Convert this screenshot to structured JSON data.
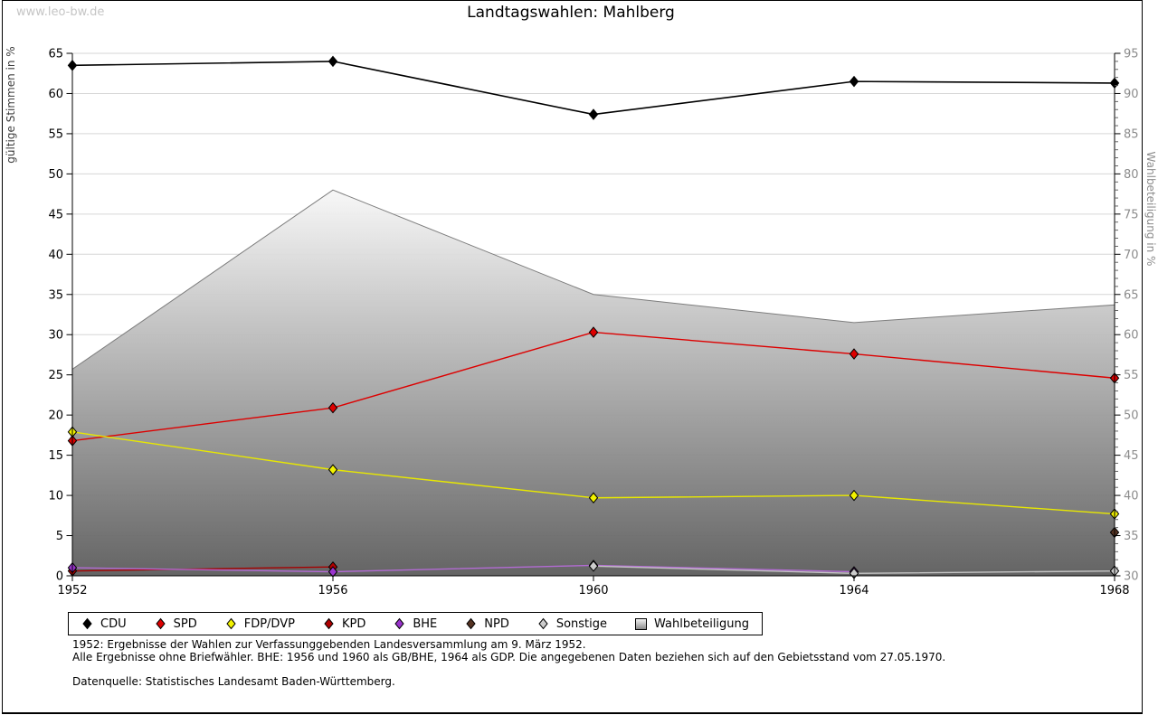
{
  "watermark": "www.leo-bw.de",
  "title": "Landtagswahlen: Mahlberg",
  "chart_data": {
    "type": "line",
    "x": [
      1952,
      1956,
      1960,
      1964,
      1968
    ],
    "left_axis": {
      "label": "gültige Stimmen in %",
      "min": 0,
      "max": 65,
      "tick_step": 5,
      "ticks": [
        0,
        5,
        10,
        15,
        20,
        25,
        30,
        35,
        40,
        45,
        50,
        55,
        60,
        65
      ]
    },
    "right_axis": {
      "label": "Wahlbeteiligung in %",
      "min": 30,
      "max": 95,
      "tick_step": 5,
      "minor_step": 1,
      "ticks": [
        30,
        35,
        40,
        45,
        50,
        55,
        60,
        65,
        70,
        75,
        80,
        85,
        90,
        95
      ]
    },
    "grid": "horizontal",
    "legend_position": "bottom",
    "series": [
      {
        "name": "CDU",
        "color": "#000000",
        "line_color": "#000000",
        "values": [
          63.5,
          64.0,
          57.4,
          61.5,
          61.3
        ]
      },
      {
        "name": "SPD",
        "color": "#dd0000",
        "line_color": "#dd0000",
        "values": [
          16.8,
          20.9,
          30.3,
          27.6,
          24.6
        ]
      },
      {
        "name": "FDP/DVP",
        "color": "#f2f200",
        "line_color": "#e8e800",
        "values": [
          17.9,
          13.2,
          9.7,
          10.0,
          7.7
        ]
      },
      {
        "name": "KPD",
        "color": "#b00000",
        "line_color": "#a50000",
        "values": [
          0.6,
          1.1,
          null,
          null,
          null
        ]
      },
      {
        "name": "BHE",
        "color": "#9933cc",
        "line_color": "#b36bd4",
        "values": [
          1.0,
          0.5,
          1.3,
          0.5,
          null
        ]
      },
      {
        "name": "NPD",
        "color": "#553322",
        "line_color": "#553322",
        "values": [
          null,
          null,
          null,
          null,
          5.4
        ]
      },
      {
        "name": "Sonstige",
        "color": "#cccccc",
        "line_color": "#c4c4c4",
        "values": [
          null,
          null,
          1.2,
          0.3,
          0.6
        ]
      }
    ],
    "area_series": {
      "name": "Wahlbeteiligung",
      "axis": "right",
      "values": [
        55.7,
        78.0,
        65.0,
        61.5,
        63.7
      ],
      "fill_top": "#f7f7f7",
      "fill_bottom": "#5c5c5c",
      "stroke": "#7d7d7d"
    }
  },
  "notes": {
    "line1": "1952: Ergebnisse der Wahlen zur Verfassunggebenden Landesversammlung am 9. März 1952.",
    "line2": "Alle Ergebnisse ohne Briefwähler. BHE: 1956 und 1960 als GB/BHE, 1964 als GDP. Die angegebenen Daten beziehen sich auf den Gebietsstand vom 27.05.1970.",
    "source": "Datenquelle: Statistisches Landesamt Baden-Württemberg."
  }
}
